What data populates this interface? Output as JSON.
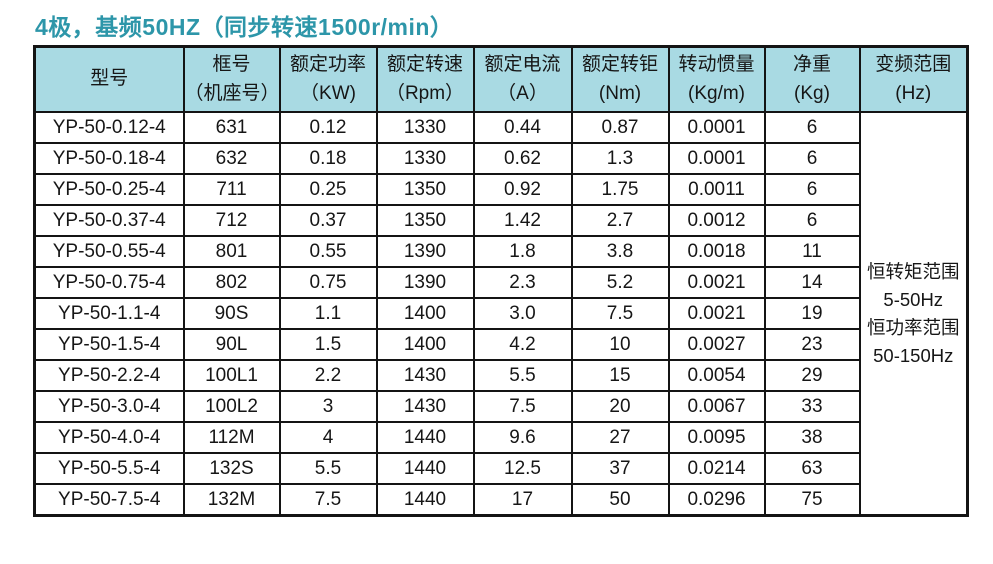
{
  "title": "4极，基频50HZ（同步转速1500r/min）",
  "colors": {
    "title_text": "#2d96a9",
    "header_bg": "#a9dae3",
    "border": "#141414"
  },
  "table": {
    "columns": [
      {
        "l1": "型号",
        "l2": ""
      },
      {
        "l1": "框号",
        "l2": "（机座号）"
      },
      {
        "l1": "额定功率",
        "l2": "（KW)"
      },
      {
        "l1": "额定转速",
        "l2": "（Rpm）"
      },
      {
        "l1": "额定电流",
        "l2": "（A）"
      },
      {
        "l1": "额定转钜",
        "l2": "(Nm)"
      },
      {
        "l1": "转动惯量",
        "l2": "(Kg/m)"
      },
      {
        "l1": "净重",
        "l2": "(Kg)"
      },
      {
        "l1": "变频范围",
        "l2": "(Hz)"
      }
    ],
    "rows": [
      [
        "YP-50-0.12-4",
        "631",
        "0.12",
        "1330",
        "0.44",
        "0.87",
        "0.0001",
        "6"
      ],
      [
        "YP-50-0.18-4",
        "632",
        "0.18",
        "1330",
        "0.62",
        "1.3",
        "0.0001",
        "6"
      ],
      [
        "YP-50-0.25-4",
        "711",
        "0.25",
        "1350",
        "0.92",
        "1.75",
        "0.0011",
        "6"
      ],
      [
        "YP-50-0.37-4",
        "712",
        "0.37",
        "1350",
        "1.42",
        "2.7",
        "0.0012",
        "6"
      ],
      [
        "YP-50-0.55-4",
        "801",
        "0.55",
        "1390",
        "1.8",
        "3.8",
        "0.0018",
        "11"
      ],
      [
        "YP-50-0.75-4",
        "802",
        "0.75",
        "1390",
        "2.3",
        "5.2",
        "0.0021",
        "14"
      ],
      [
        "YP-50-1.1-4",
        "90S",
        "1.1",
        "1400",
        "3.0",
        "7.5",
        "0.0021",
        "19"
      ],
      [
        "YP-50-1.5-4",
        "90L",
        "1.5",
        "1400",
        "4.2",
        "10",
        "0.0027",
        "23"
      ],
      [
        "YP-50-2.2-4",
        "100L1",
        "2.2",
        "1430",
        "5.5",
        "15",
        "0.0054",
        "29"
      ],
      [
        "YP-50-3.0-4",
        "100L2",
        "3",
        "1430",
        "7.5",
        "20",
        "0.0067",
        "33"
      ],
      [
        "YP-50-4.0-4",
        "112M",
        "4",
        "1440",
        "9.6",
        "27",
        "0.0095",
        "38"
      ],
      [
        "YP-50-5.5-4",
        "132S",
        "5.5",
        "1440",
        "12.5",
        "37",
        "0.0214",
        "63"
      ],
      [
        "YP-50-7.5-4",
        "132M",
        "7.5",
        "1440",
        "17",
        "50",
        "0.0296",
        "75"
      ]
    ],
    "freq_range_lines": [
      "恒转矩范围",
      "5-50Hz",
      "恒功率范围",
      "50-150Hz"
    ]
  }
}
